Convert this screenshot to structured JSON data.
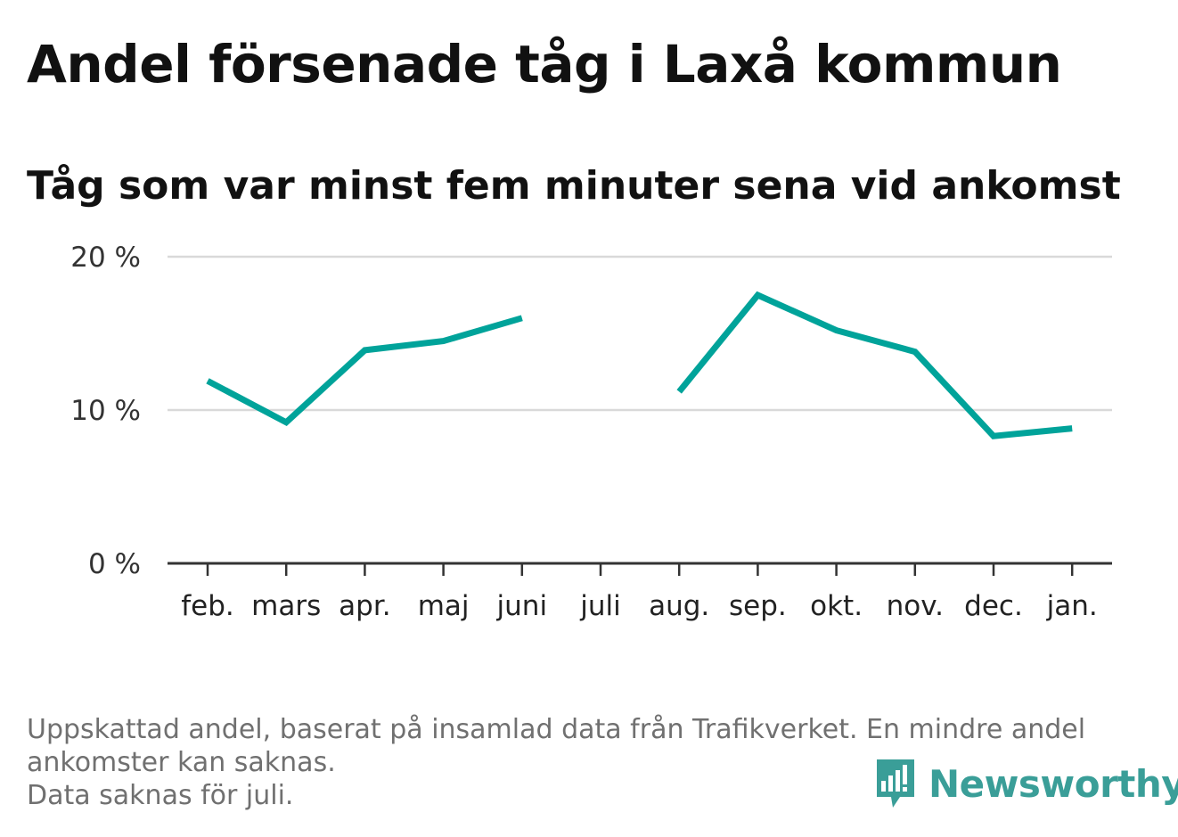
{
  "title": "Andel försenade tåg i Laxå kommun",
  "subtitle": "Tåg som var minst fem minuter sena vid ankomst",
  "footnote": {
    "line1": "Uppskattad andel, baserat på insamlad data från Trafikverket. En mindre andel",
    "line2": "ankomster kan saknas.",
    "line3": "Data saknas för juli."
  },
  "logo": {
    "text": "Newsworthy",
    "icon": "newsworthy-chart-bubble-icon",
    "color": "#3a9e98"
  },
  "chart_data": {
    "type": "line",
    "categories": [
      "feb.",
      "mars",
      "apr.",
      "maj",
      "juni",
      "juli",
      "aug.",
      "sep.",
      "okt.",
      "nov.",
      "dec.",
      "jan."
    ],
    "series": [
      {
        "values": [
          11.9,
          9.2,
          13.9,
          14.5,
          16.0,
          null,
          11.2,
          17.5,
          15.2,
          13.8,
          8.3,
          8.8
        ],
        "color": "#00a39a"
      }
    ],
    "ylim": [
      0,
      20
    ],
    "yticks": [
      {
        "value": 0,
        "label": "0 %"
      },
      {
        "value": 10,
        "label": "10 %"
      },
      {
        "value": 20,
        "label": "20 %"
      }
    ],
    "grid": true,
    "legend": "none",
    "xlabel": "",
    "ylabel": ""
  }
}
